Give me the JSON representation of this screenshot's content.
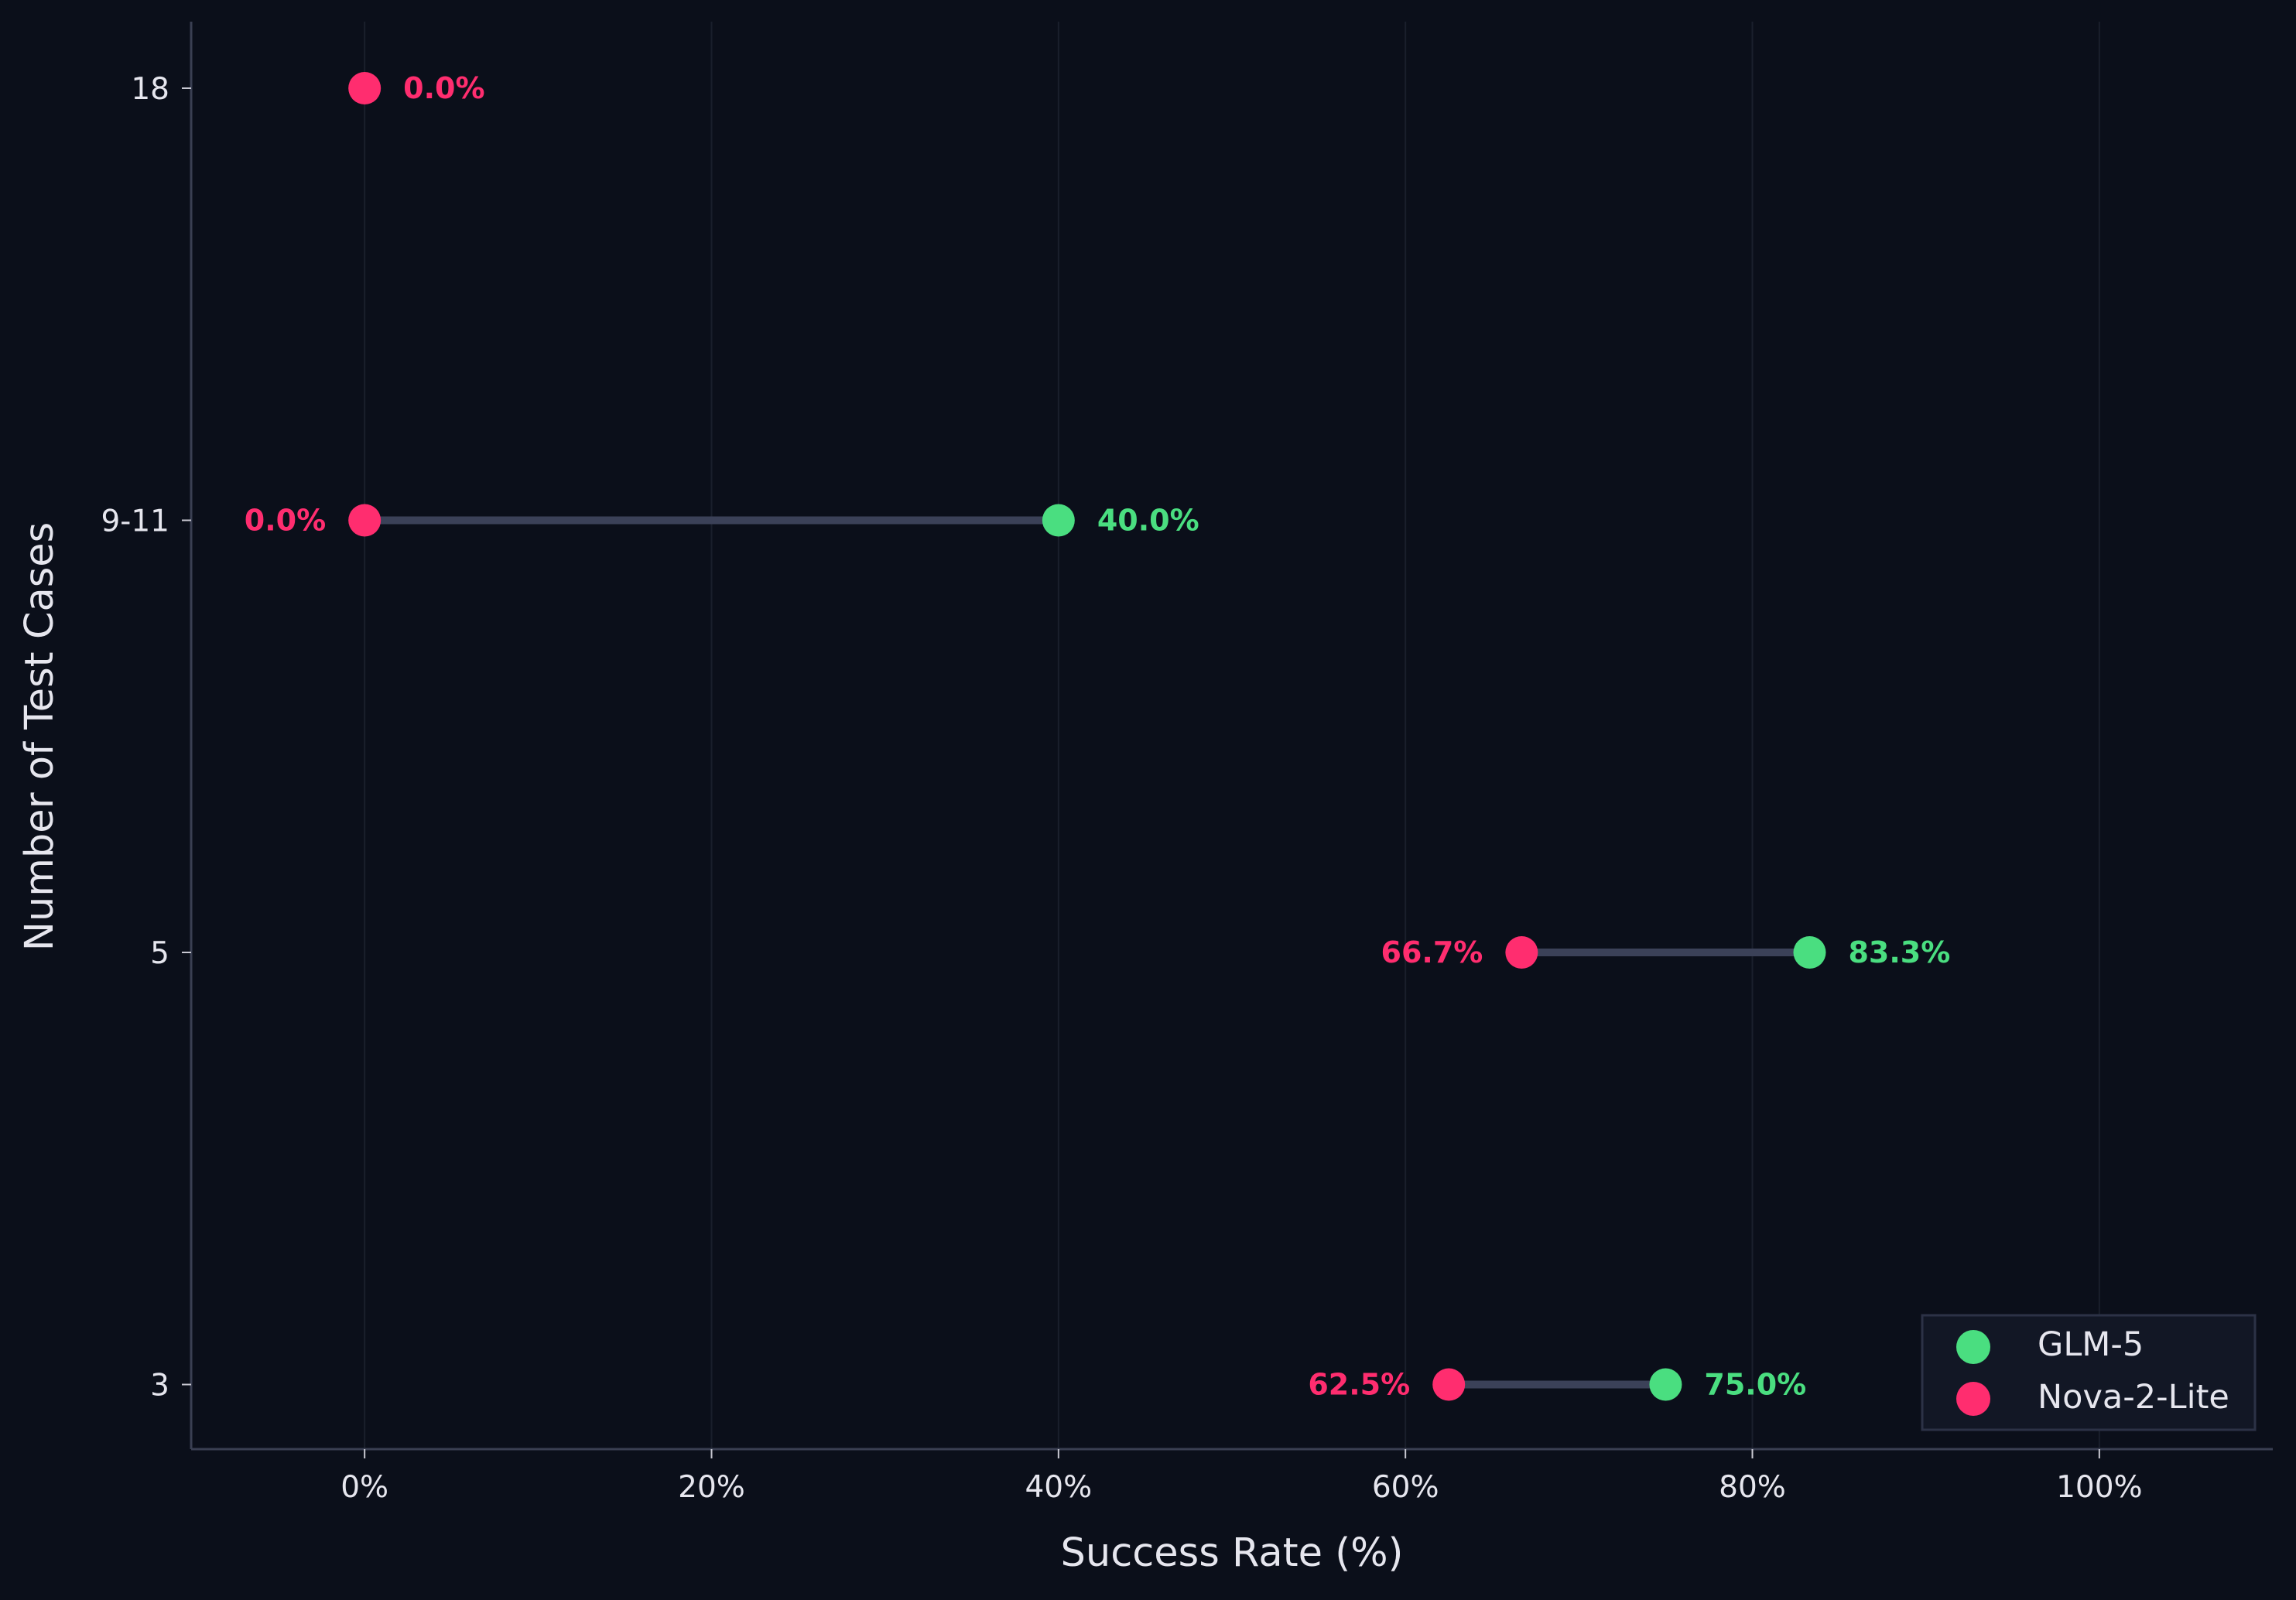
{
  "chart_data": {
    "type": "dumbbell",
    "title": "",
    "xlabel": "Success Rate (%)",
    "ylabel": "Number of Test Cases",
    "xlim": [
      -10,
      110
    ],
    "xticks": [
      0,
      20,
      40,
      60,
      80,
      100
    ],
    "xtick_labels": [
      "0%",
      "20%",
      "40%",
      "60%",
      "80%",
      "100%"
    ],
    "categories": [
      "18",
      "9-11",
      "5",
      "3"
    ],
    "series": [
      {
        "name": "GLM-5",
        "color": "#4ade80",
        "values": [
          null,
          40.0,
          83.3,
          75.0
        ],
        "labels": [
          null,
          "40.0%",
          "83.3%",
          "75.0%"
        ]
      },
      {
        "name": "Nova-2-Lite",
        "color": "#ff2d6f",
        "values": [
          0.0,
          0.0,
          66.7,
          62.5
        ],
        "labels": [
          "0.0%",
          "0.0%",
          "66.7%",
          "62.5%"
        ]
      }
    ],
    "connector_color": "#3b4158",
    "grid": "vertical",
    "legend": "bottom-right",
    "background": "#0b0f1a"
  }
}
